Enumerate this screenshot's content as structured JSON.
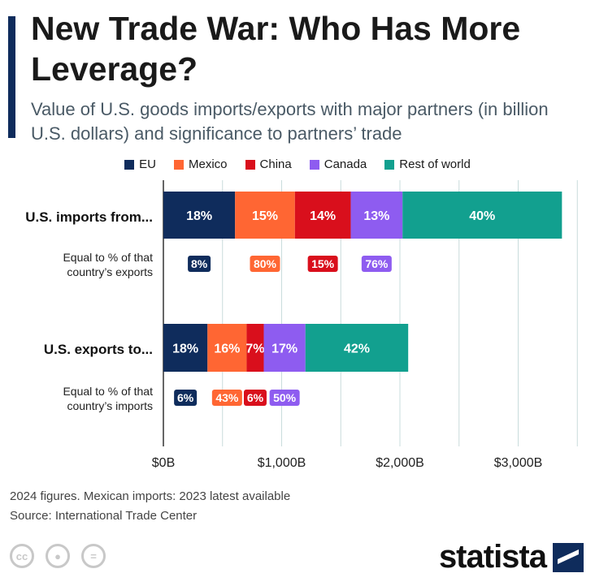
{
  "header": {
    "title": "New Trade War: Who Has More Leverage?",
    "subtitle": "Value of U.S. goods imports/exports with major partners (in billion U.S. dollars) and significance to partners’ trade"
  },
  "legend": [
    {
      "label": "EU",
      "color": "#0f2c5c"
    },
    {
      "label": "Mexico",
      "color": "#ff6633"
    },
    {
      "label": "China",
      "color": "#d90f1c"
    },
    {
      "label": "Canada",
      "color": "#8e5cf0"
    },
    {
      "label": "Rest of world",
      "color": "#12a08f"
    }
  ],
  "chart_data": {
    "type": "bar",
    "orientation": "horizontal",
    "stacked": true,
    "x_unit": "billion U.S. dollars",
    "xlim": [
      0,
      3500
    ],
    "x_ticks": [
      0,
      1000,
      2000,
      3000
    ],
    "x_tick_labels": [
      "$0B",
      "$1,000B",
      "$2,000B",
      "$3,000B"
    ],
    "grid": true,
    "legend_position": "top",
    "rows": [
      {
        "label": "U.S. imports from...",
        "total": 3370,
        "segments": [
          {
            "series": "EU",
            "value": 606,
            "share_label": "18%"
          },
          {
            "series": "Mexico",
            "value": 506,
            "share_label": "15%"
          },
          {
            "series": "China",
            "value": 472,
            "share_label": "14%"
          },
          {
            "series": "Canada",
            "value": 438,
            "share_label": "13%"
          },
          {
            "series": "Rest of world",
            "value": 1348,
            "share_label": "40%"
          }
        ],
        "sub_label": "Equal to % of that country’s exports",
        "partner_share": [
          {
            "series": "EU",
            "label": "8%"
          },
          {
            "series": "Mexico",
            "label": "80%"
          },
          {
            "series": "China",
            "label": "15%"
          },
          {
            "series": "Canada",
            "label": "76%"
          }
        ]
      },
      {
        "label": "U.S. exports to...",
        "total": 2070,
        "segments": [
          {
            "series": "EU",
            "value": 373,
            "share_label": "18%"
          },
          {
            "series": "Mexico",
            "value": 331,
            "share_label": "16%"
          },
          {
            "series": "China",
            "value": 145,
            "share_label": "7%"
          },
          {
            "series": "Canada",
            "value": 352,
            "share_label": "17%"
          },
          {
            "series": "Rest of world",
            "value": 869,
            "share_label": "42%"
          }
        ],
        "sub_label": "Equal to % of that country’s imports",
        "partner_share": [
          {
            "series": "EU",
            "label": "6%"
          },
          {
            "series": "Mexico",
            "label": "43%"
          },
          {
            "series": "China",
            "label": "6%"
          },
          {
            "series": "Canada",
            "label": "50%"
          }
        ]
      }
    ]
  },
  "footer": {
    "note": "2024 figures. Mexican imports: 2023 latest available",
    "source": "Source: International Trade Center",
    "brand": "statista",
    "cc_icons": [
      "cc-icon",
      "attribution-icon",
      "no-derivatives-icon"
    ]
  }
}
